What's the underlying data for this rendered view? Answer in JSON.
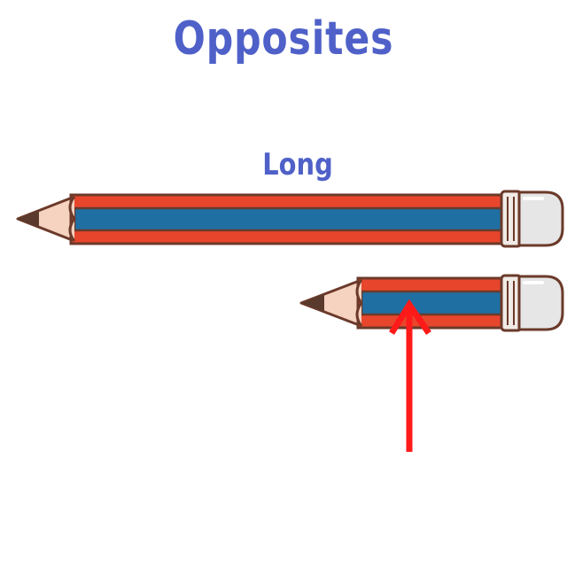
{
  "title": "Opposites",
  "long_pencil": {
    "label": "Long"
  },
  "colors": {
    "title": "#4f61c8",
    "pencil_red": "#e8462c",
    "pencil_blue": "#1f6fa3",
    "outline": "#6b3a2a",
    "wood": "#f6d2c0",
    "graphite": "#5a3a2c",
    "ferrule": "#f0ebe6",
    "eraser": "#e6e6e6",
    "arrow": "#ff1a1a"
  },
  "icons": [
    "pencil-long",
    "pencil-short",
    "up-arrow-icon"
  ]
}
